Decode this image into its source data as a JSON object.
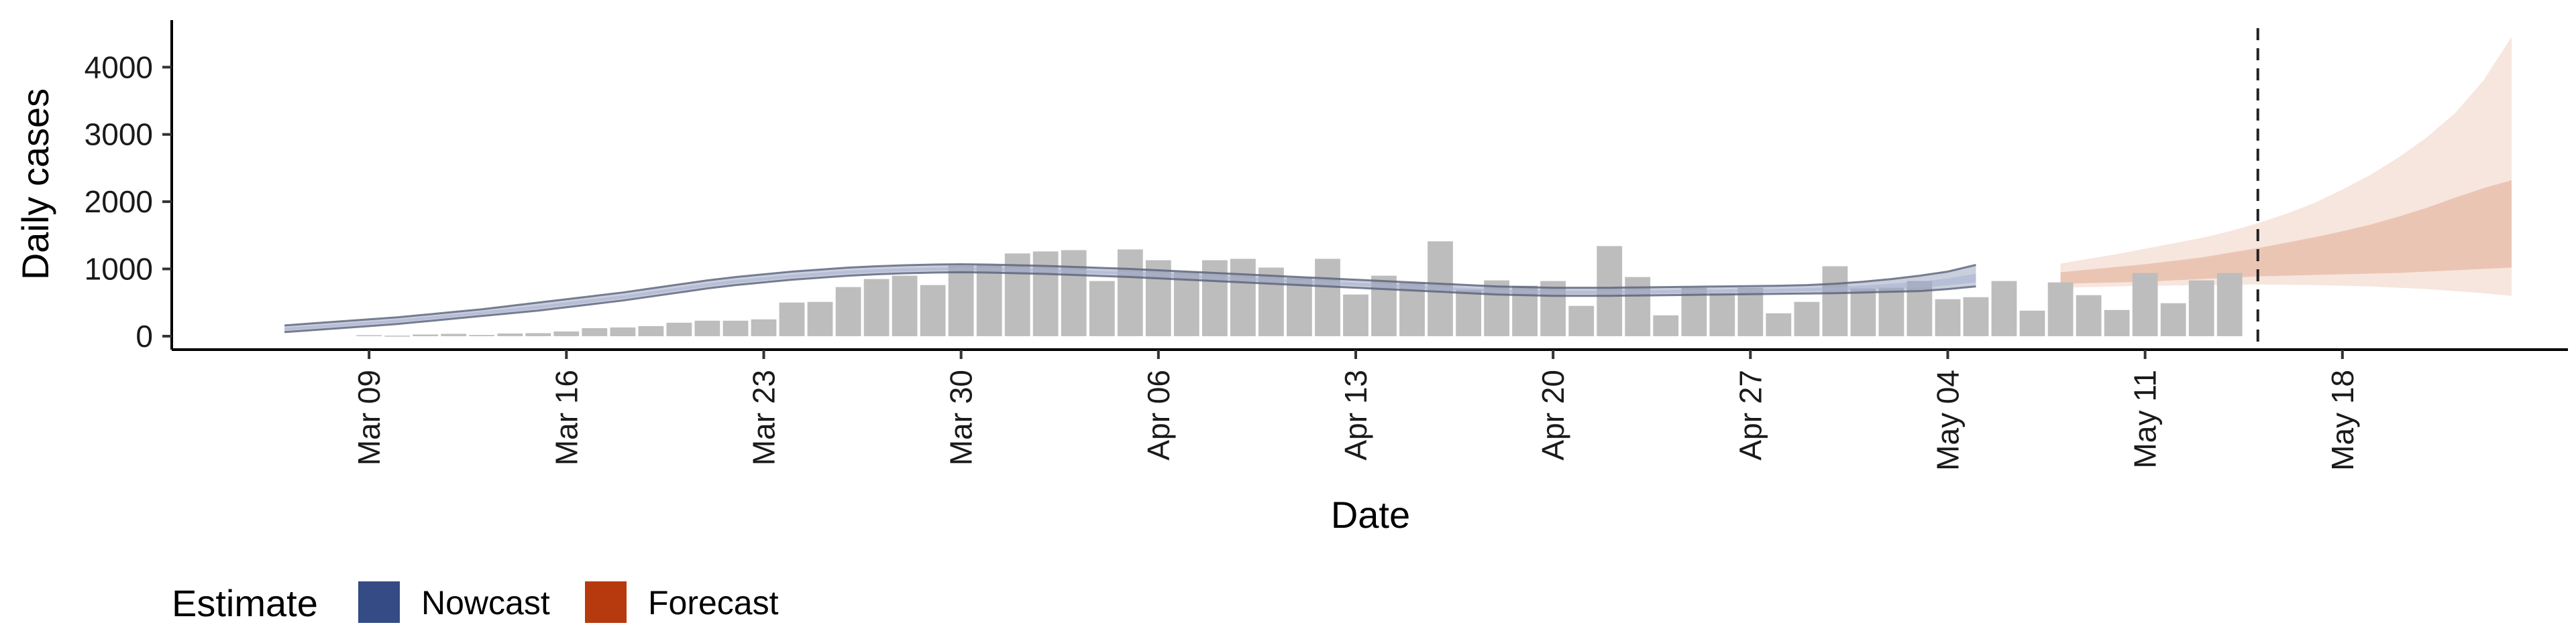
{
  "chart_data": {
    "type": "bar",
    "xlabel": "Date",
    "ylabel": "Daily cases",
    "ylim": [
      -200,
      4700
    ],
    "yticks": [
      0,
      1000,
      2000,
      3000,
      4000
    ],
    "x_ticks": [
      {
        "date": "2020-03-09",
        "label": "Mar 09"
      },
      {
        "date": "2020-03-16",
        "label": "Mar 16"
      },
      {
        "date": "2020-03-23",
        "label": "Mar 23"
      },
      {
        "date": "2020-03-30",
        "label": "Mar 30"
      },
      {
        "date": "2020-04-06",
        "label": "Apr 06"
      },
      {
        "date": "2020-04-13",
        "label": "Apr 13"
      },
      {
        "date": "2020-04-20",
        "label": "Apr 20"
      },
      {
        "date": "2020-04-27",
        "label": "Apr 27"
      },
      {
        "date": "2020-05-04",
        "label": "May 04"
      },
      {
        "date": "2020-05-11",
        "label": "May 11"
      },
      {
        "date": "2020-05-18",
        "label": "May 18"
      }
    ],
    "xlim": [
      "2020-03-02",
      "2020-05-26"
    ],
    "grid": false,
    "legend": {
      "title": "Estimate",
      "position": "bottom-left",
      "items": [
        {
          "label": "Nowcast",
          "color": "#354B85"
        },
        {
          "label": "Forecast",
          "color": "#B63A0E"
        }
      ]
    },
    "forecast_date": "2020-05-15",
    "reported_cases": {
      "start_date": "2020-03-09",
      "color": "#bdbdbd",
      "values": [
        15,
        8,
        25,
        35,
        18,
        40,
        45,
        70,
        120,
        130,
        150,
        200,
        230,
        230,
        250,
        500,
        510,
        730,
        850,
        900,
        760,
        1050,
        1060,
        1230,
        1260,
        1280,
        820,
        1290,
        1130,
        960,
        1130,
        1150,
        1020,
        870,
        1150,
        620,
        900,
        800,
        1410,
        690,
        830,
        750,
        820,
        450,
        1340,
        880,
        310,
        720,
        640,
        720,
        340,
        510,
        1040,
        710,
        720,
        820,
        550,
        580,
        820,
        380,
        800,
        610,
        390,
        940,
        490,
        830,
        940
      ]
    },
    "nowcast": {
      "start_date": "2020-03-06",
      "color": "#354B85",
      "median": [
        100,
        130,
        160,
        190,
        220,
        260,
        300,
        340,
        380,
        430,
        480,
        530,
        580,
        640,
        700,
        760,
        810,
        850,
        890,
        920,
        950,
        970,
        985,
        995,
        1000,
        995,
        985,
        975,
        960,
        945,
        930,
        910,
        890,
        870,
        850,
        830,
        810,
        790,
        770,
        750,
        730,
        710,
        690,
        670,
        660,
        650,
        650,
        650,
        655,
        660,
        665,
        670,
        675,
        680,
        690,
        700,
        720,
        740,
        760,
        800,
        850
      ],
      "lower90": [
        60,
        90,
        120,
        150,
        180,
        220,
        260,
        300,
        340,
        380,
        430,
        480,
        530,
        590,
        650,
        710,
        760,
        800,
        840,
        870,
        900,
        920,
        935,
        945,
        950,
        945,
        935,
        925,
        910,
        895,
        880,
        860,
        840,
        820,
        800,
        780,
        760,
        740,
        720,
        700,
        680,
        660,
        640,
        620,
        610,
        600,
        600,
        600,
        605,
        610,
        615,
        620,
        625,
        630,
        635,
        640,
        650,
        660,
        670,
        700,
        740
      ],
      "upper90": [
        160,
        190,
        220,
        250,
        280,
        320,
        360,
        400,
        450,
        500,
        550,
        600,
        650,
        710,
        770,
        830,
        880,
        920,
        960,
        990,
        1020,
        1040,
        1055,
        1065,
        1070,
        1065,
        1055,
        1045,
        1030,
        1015,
        1000,
        980,
        960,
        940,
        920,
        900,
        880,
        860,
        840,
        820,
        800,
        780,
        760,
        740,
        730,
        720,
        720,
        720,
        725,
        730,
        735,
        740,
        745,
        750,
        760,
        780,
        810,
        850,
        900,
        960,
        1060
      ],
      "lower50": [
        85,
        115,
        145,
        175,
        205,
        245,
        285,
        325,
        365,
        410,
        460,
        510,
        560,
        620,
        680,
        740,
        790,
        830,
        870,
        900,
        930,
        950,
        965,
        975,
        980,
        975,
        965,
        955,
        940,
        925,
        910,
        890,
        870,
        850,
        830,
        810,
        790,
        770,
        750,
        730,
        710,
        690,
        670,
        650,
        640,
        630,
        630,
        630,
        635,
        640,
        645,
        650,
        655,
        660,
        667,
        675,
        690,
        705,
        720,
        755,
        800
      ],
      "upper50": [
        125,
        155,
        185,
        215,
        245,
        285,
        325,
        365,
        410,
        455,
        505,
        555,
        605,
        665,
        725,
        785,
        835,
        875,
        915,
        945,
        975,
        995,
        1010,
        1020,
        1025,
        1020,
        1010,
        1000,
        985,
        970,
        955,
        935,
        915,
        895,
        875,
        855,
        835,
        815,
        795,
        775,
        755,
        735,
        715,
        695,
        685,
        675,
        675,
        675,
        680,
        685,
        690,
        695,
        700,
        705,
        715,
        730,
        755,
        780,
        810,
        860,
        930
      ]
    },
    "forecast": {
      "start_date": "2020-05-08",
      "color": "#B63A0E",
      "median": [
        880,
        900,
        925,
        950,
        980,
        1010,
        1050,
        1090,
        1130,
        1180,
        1230,
        1290,
        1350,
        1420,
        1500,
        1580,
        1660
      ],
      "lower90": [
        720,
        730,
        740,
        750,
        755,
        760,
        765,
        770,
        765,
        760,
        750,
        740,
        720,
        700,
        670,
        640,
        600
      ],
      "upper90": [
        1080,
        1150,
        1220,
        1300,
        1380,
        1460,
        1560,
        1680,
        1820,
        1980,
        2180,
        2400,
        2660,
        2960,
        3320,
        3800,
        4450
      ],
      "lower50": [
        780,
        790,
        800,
        810,
        830,
        850,
        870,
        890,
        900,
        910,
        920,
        930,
        940,
        960,
        980,
        1000,
        1020
      ],
      "upper50": [
        950,
        990,
        1030,
        1070,
        1120,
        1170,
        1240,
        1310,
        1390,
        1470,
        1560,
        1660,
        1780,
        1910,
        2060,
        2200,
        2320
      ]
    }
  }
}
